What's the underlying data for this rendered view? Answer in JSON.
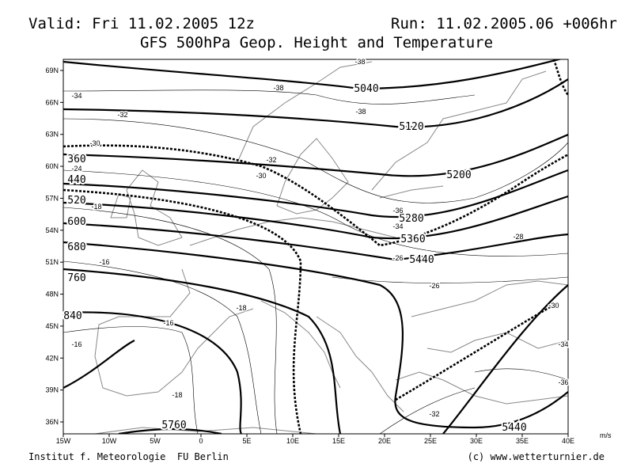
{
  "header": {
    "valid": "Valid: Fri 11.02.2005 12z",
    "run": "Run: 11.02.2005.06 +006hr",
    "title": "GFS 500hPa Geop. Height and Temperature"
  },
  "map": {
    "lat_labels": [
      "69N",
      "66N",
      "63N",
      "60N",
      "57N",
      "54N",
      "51N",
      "48N",
      "45N",
      "42N",
      "39N",
      "36N"
    ],
    "lon_labels": [
      "15W",
      "10W",
      "5W",
      "0",
      "5E",
      "10E",
      "15E",
      "20E",
      "25E",
      "30E",
      "35E",
      "40E"
    ],
    "unit": "m/s",
    "height_labels": [
      "5040",
      "5120",
      "5200",
      "5280",
      "5360",
      "5440",
      "360",
      "440",
      "520",
      "600",
      "680",
      "760",
      "840",
      "5760",
      "5440"
    ],
    "temperature_labels": [
      "-38",
      "-38",
      "-34",
      "-32",
      "-38",
      "-32",
      "-30",
      "-30",
      "-24",
      "-18",
      "-36",
      "-34",
      "-28",
      "-26",
      "-26",
      "-16",
      "-18",
      "-16",
      "-18",
      "-16",
      "-30",
      "-34",
      "-36",
      "-32"
    ]
  },
  "footer": {
    "left": "Institut f. Meteorologie  FU Berlin",
    "right": "(c) www.wetterturnier.de"
  }
}
